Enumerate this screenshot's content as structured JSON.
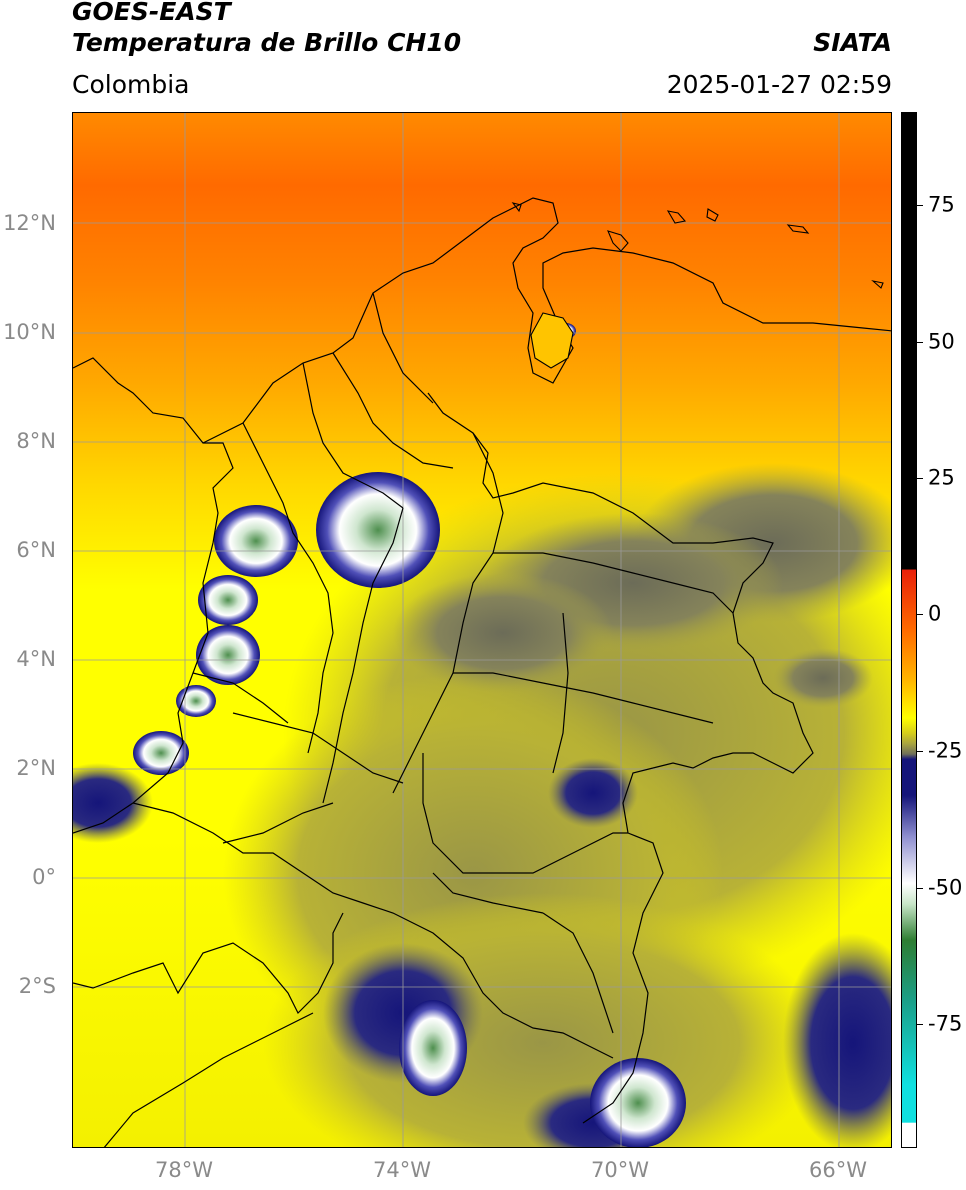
{
  "header": {
    "title_line1": "GOES-EAST",
    "title_line2": "Temperatura de Brillo CH10",
    "agency": "SIATA",
    "region": "Colombia",
    "timestamp": "2025-01-27 02:59"
  },
  "map": {
    "lat_labels": [
      "12°N",
      "10°N",
      "8°N",
      "6°N",
      "4°N",
      "2°N",
      "0°",
      "2°S"
    ],
    "lon_labels": [
      "78°W",
      "74°W",
      "70°W",
      "66°W"
    ]
  },
  "colorbar": {
    "ticks": [
      "75",
      "50",
      "25",
      "0",
      "-25",
      "-50",
      "-75"
    ],
    "colors": {
      "black": "#000000",
      "red": "#e8200a",
      "orange": "#ff8a00",
      "yellow": "#ffff00",
      "olive": "#c8c028",
      "gray": "#6f6f5a",
      "navy": "#15157a",
      "white": "#ffffff",
      "green": "#2e7d32",
      "teal": "#1aa08a",
      "cyan": "#10e0e0"
    }
  }
}
